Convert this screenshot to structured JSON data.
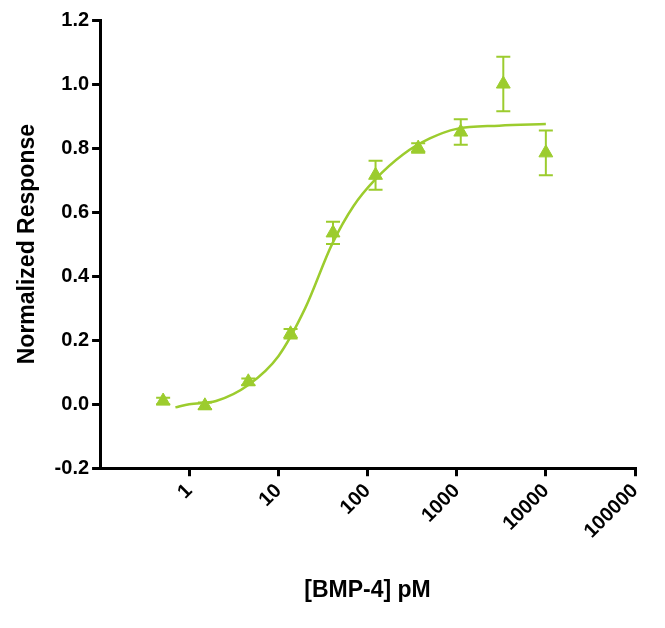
{
  "chart_data": {
    "type": "scatter",
    "x_label": "[BMP-4] pM",
    "y_label": "Normalized Response",
    "log": "x",
    "grid": false,
    "xlim": [
      0.1,
      100000
    ],
    "xticks": [
      1,
      10,
      100,
      1000,
      10000,
      100000
    ],
    "ylim": [
      -0.2,
      1.2
    ],
    "yticks": [
      -0.2,
      {
        "value": 0,
        "label": "0.0"
      },
      0.2,
      0.4,
      0.6,
      0.8,
      {
        "value": 1,
        "label": "1.0"
      },
      1.2
    ],
    "series": [
      {
        "type": "scatter",
        "color": "#9ccc2e",
        "marker": "triangle",
        "x": [
          0.51,
          1.5,
          4.6,
          13.7,
          41,
          123,
          370,
          1111,
          3333,
          10000
        ],
        "values": [
          0.01,
          -0.005,
          0.07,
          0.22,
          0.535,
          0.715,
          0.8,
          0.85,
          1.0,
          0.785
        ],
        "errors": [
          0.01,
          0.01,
          0.01,
          0.015,
          0.035,
          0.045,
          0.015,
          0.04,
          0.085,
          0.07
        ]
      },
      {
        "type": "line",
        "color": "#9ccc2e",
        "line_style": "solid",
        "x": [
          0.7,
          1,
          2,
          4.6,
          10,
          20,
          40,
          70,
          120,
          250,
          500,
          1000,
          3000,
          10000
        ],
        "values": [
          -0.01,
          0,
          0.01,
          0.06,
          0.15,
          0.3,
          0.5,
          0.62,
          0.7,
          0.78,
          0.83,
          0.86,
          0.87,
          0.875
        ]
      }
    ]
  }
}
